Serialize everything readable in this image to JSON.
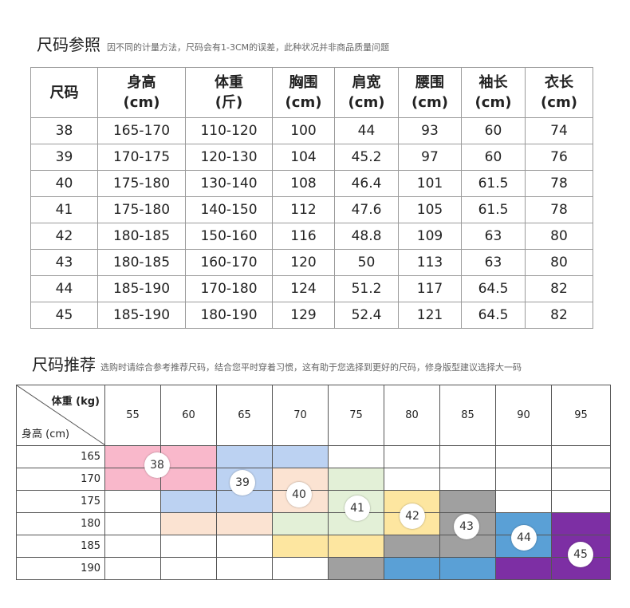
{
  "size_reference": {
    "title": "尺码参照",
    "note": "因不同的计量方法，尺码会有1-3CM的误差，此种状况并非商品质量问题",
    "headers": [
      [
        "尺码",
        ""
      ],
      [
        "身高",
        "(cm)"
      ],
      [
        "体重",
        "(斤)"
      ],
      [
        "胸围",
        "(cm)"
      ],
      [
        "肩宽",
        "(cm)"
      ],
      [
        "腰围",
        "(cm)"
      ],
      [
        "袖长",
        "(cm)"
      ],
      [
        "衣长",
        "(cm)"
      ]
    ],
    "rows": [
      [
        "38",
        "165-170",
        "110-120",
        "100",
        "44",
        "93",
        "60",
        "74"
      ],
      [
        "39",
        "170-175",
        "120-130",
        "104",
        "45.2",
        "97",
        "60",
        "76"
      ],
      [
        "40",
        "175-180",
        "130-140",
        "108",
        "46.4",
        "101",
        "61.5",
        "78"
      ],
      [
        "41",
        "175-180",
        "140-150",
        "112",
        "47.6",
        "105",
        "61.5",
        "78"
      ],
      [
        "42",
        "180-185",
        "150-160",
        "116",
        "48.8",
        "109",
        "63",
        "80"
      ],
      [
        "43",
        "180-185",
        "160-170",
        "120",
        "50",
        "113",
        "63",
        "80"
      ],
      [
        "44",
        "185-190",
        "170-180",
        "124",
        "51.2",
        "117",
        "64.5",
        "82"
      ],
      [
        "45",
        "185-190",
        "180-190",
        "129",
        "52.4",
        "121",
        "64.5",
        "82"
      ]
    ]
  },
  "size_recommendation": {
    "title": "尺码推荐",
    "note": "选购时请综合参考推荐尺码，结合您平时穿着习惯，这有助于您选择到更好的尺码，修身版型建议选择大一码",
    "weight_label": "体重 (kg)",
    "height_label": "身高 (cm)",
    "weights": [
      "55",
      "60",
      "65",
      "70",
      "75",
      "80",
      "85",
      "90",
      "95"
    ],
    "heights": [
      "165",
      "170",
      "175",
      "180",
      "185",
      "190"
    ],
    "colors": {
      "pink": "#f9b8cb",
      "lblue": "#bcd2f2",
      "peach": "#fbe3d2",
      "lgreen": "#e3f0d7",
      "yellow": "#fde6a0",
      "gray": "#a0a0a0",
      "blue": "#5aa0d6",
      "purple": "#7d2fa4"
    },
    "grid": [
      [
        "pink",
        "pink",
        "lblue",
        "lblue",
        "",
        "",
        "",
        "",
        ""
      ],
      [
        "pink",
        "pink",
        "lblue",
        "peach",
        "lgreen",
        "",
        "",
        "",
        ""
      ],
      [
        "",
        "lblue",
        "lblue",
        "peach",
        "lgreen",
        "yellow",
        "gray",
        "",
        ""
      ],
      [
        "",
        "peach",
        "peach",
        "lgreen",
        "lgreen",
        "yellow",
        "gray",
        "blue",
        "purple"
      ],
      [
        "",
        "",
        "",
        "yellow",
        "yellow",
        "gray",
        "gray",
        "blue",
        "purple"
      ],
      [
        "",
        "",
        "",
        "",
        "gray",
        "blue",
        "blue",
        "purple",
        "purple"
      ]
    ],
    "badges": [
      "38",
      "39",
      "40",
      "41",
      "42",
      "43",
      "44",
      "45"
    ]
  }
}
